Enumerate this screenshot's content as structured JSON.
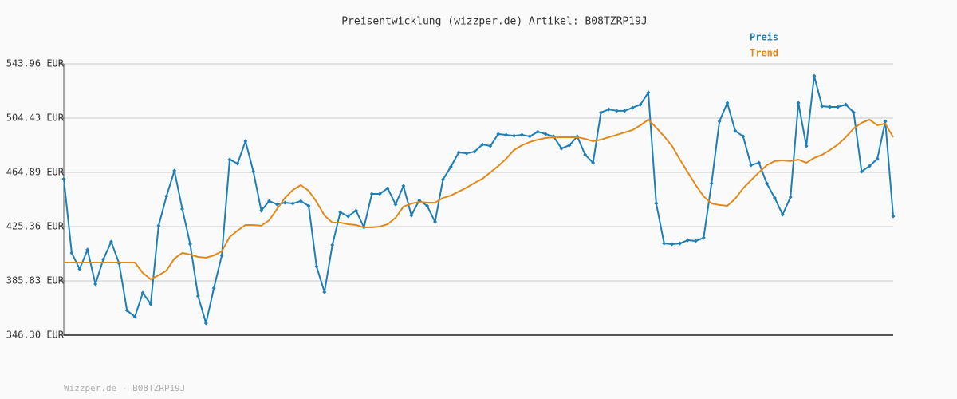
{
  "chart_data": {
    "type": "line",
    "title": "Preisentwicklung (wizzper.de) Artikel: B08TZRP19J",
    "footer": "Wizzper.de - B08TZRP19J",
    "ylim": [
      346.3,
      543.96
    ],
    "yticks": [
      {
        "value": 346.3,
        "label": "346.30 EUR"
      },
      {
        "value": 385.83,
        "label": "385.83 EUR"
      },
      {
        "value": 425.36,
        "label": "425.36 EUR"
      },
      {
        "value": 464.89,
        "label": "464.89 EUR"
      },
      {
        "value": 504.43,
        "label": "504.43 EUR"
      },
      {
        "value": 543.96,
        "label": "543.96 EUR"
      }
    ],
    "grid": true,
    "series": [
      {
        "name": "Preis",
        "color": "#1f7fb5",
        "markers": true,
        "values": [
          460.2,
          406.2,
          394.5,
          408.5,
          383.5,
          401.5,
          414.3,
          398.6,
          364.3,
          359.7,
          377.1,
          369.0,
          426.0,
          447.5,
          466.1,
          438.2,
          412.6,
          374.8,
          355.0,
          380.6,
          404.4,
          474.2,
          471.3,
          487.6,
          465.5,
          437.0,
          444.0,
          441.6,
          442.8,
          442.2,
          444.0,
          440.5,
          396.3,
          377.7,
          412.0,
          435.8,
          432.9,
          437.0,
          424.8,
          449.2,
          449.2,
          453.3,
          441.6,
          455.0,
          433.5,
          444.5,
          440.5,
          428.8,
          459.7,
          469.0,
          479.4,
          478.8,
          480.0,
          485.2,
          484.1,
          492.8,
          492.2,
          491.6,
          492.2,
          491.1,
          494.5,
          492.8,
          491.1,
          482.3,
          484.6,
          491.1,
          477.7,
          471.9,
          508.5,
          510.8,
          509.7,
          509.7,
          512.0,
          514.3,
          523.0,
          442.2,
          413.1,
          412.6,
          413.1,
          415.5,
          414.9,
          417.2,
          456.8,
          502.1,
          515.5,
          495.1,
          491.1,
          470.1,
          471.9,
          456.8,
          446.3,
          434.1,
          446.9,
          515.5,
          484.1,
          535.2,
          513.1,
          512.6,
          512.6,
          514.3,
          508.5,
          465.5,
          469.5,
          474.8,
          502.1,
          432.9
        ]
      },
      {
        "name": "Trend",
        "color": "#e08a1c",
        "markers": false,
        "values": [
          399.2,
          399.2,
          399.2,
          399.2,
          399.2,
          399.2,
          399.2,
          399.2,
          399.2,
          399.2,
          391.7,
          387.0,
          389.9,
          393.4,
          402.1,
          406.2,
          405.0,
          403.3,
          402.7,
          404.4,
          407.4,
          417.8,
          422.5,
          426.5,
          426.5,
          426.0,
          430.0,
          438.2,
          446.3,
          452.1,
          455.6,
          451.5,
          443.4,
          433.5,
          428.3,
          428.3,
          427.1,
          426.5,
          424.8,
          424.8,
          425.4,
          427.1,
          431.8,
          439.9,
          442.2,
          443.4,
          442.8,
          442.8,
          446.3,
          448.0,
          450.9,
          453.8,
          457.3,
          460.2,
          464.9,
          469.5,
          474.8,
          481.2,
          484.6,
          487.0,
          488.7,
          489.9,
          490.5,
          490.5,
          490.5,
          490.5,
          489.3,
          487.6,
          488.7,
          490.5,
          492.2,
          494.0,
          495.7,
          499.2,
          503.3,
          497.5,
          491.1,
          484.1,
          474.2,
          464.9,
          455.6,
          447.5,
          442.2,
          441.1,
          440.5,
          445.7,
          453.3,
          459.1,
          464.9,
          470.1,
          473.1,
          473.6,
          473.1,
          474.2,
          471.9,
          475.4,
          477.7,
          481.2,
          485.2,
          490.5,
          496.9,
          501.0,
          503.3,
          499.2,
          500.4,
          490.5
        ]
      }
    ]
  }
}
